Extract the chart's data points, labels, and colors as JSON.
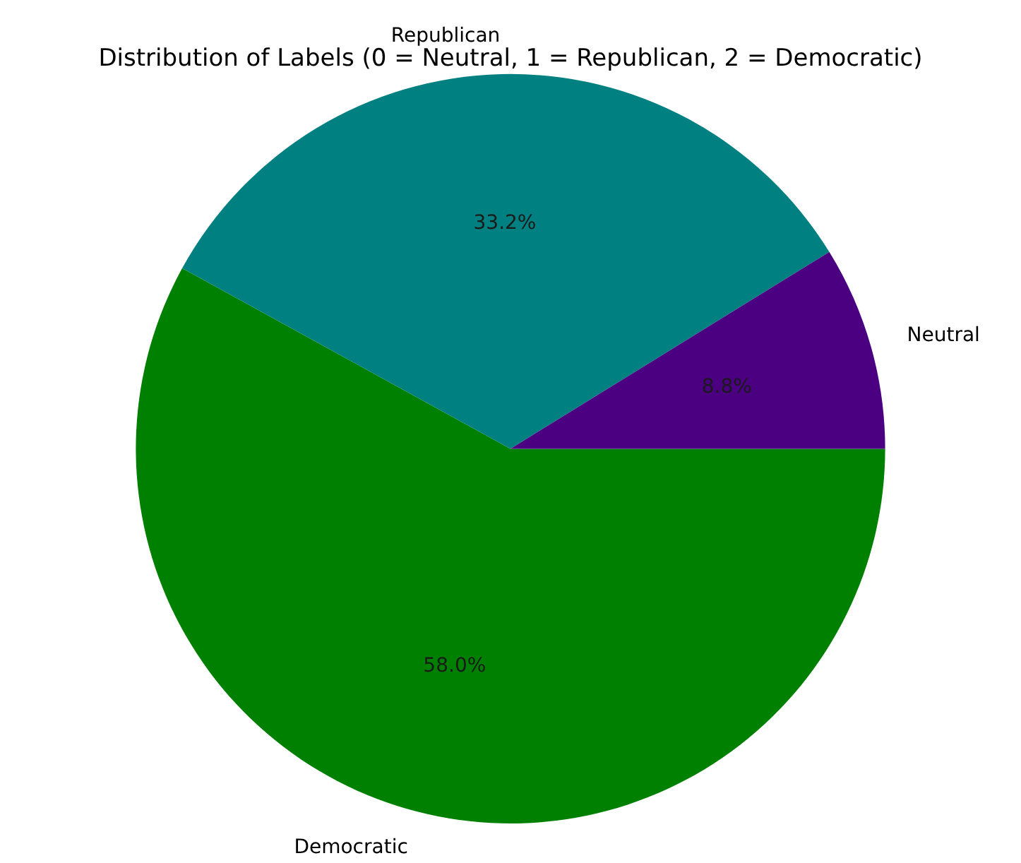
{
  "chart_data": {
    "type": "pie",
    "title": "Distribution of Labels (0 = Neutral, 1 = Republican, 2 = Democratic)",
    "categories": [
      "Neutral",
      "Republican",
      "Democratic"
    ],
    "values": [
      8.8,
      33.2,
      58.0
    ],
    "value_labels": [
      "8.8%",
      "33.2%",
      "58.0%"
    ],
    "colors": [
      "#4b0082",
      "#008080",
      "#008000"
    ],
    "legend": false
  }
}
